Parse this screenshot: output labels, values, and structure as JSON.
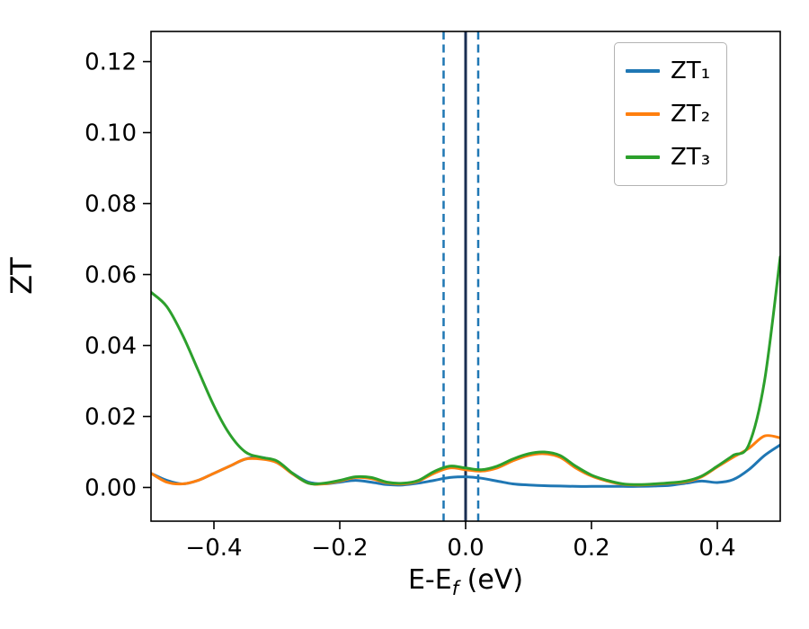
{
  "figure": {
    "background": "#ffffff",
    "ylabel": "ZT",
    "xlabel": {
      "main": "E-E",
      "sub": "f",
      "rest": " (eV)"
    }
  },
  "chart_data": {
    "type": "line",
    "title": "",
    "xlabel": "E-E_f (eV)",
    "ylabel": "ZT",
    "xlim": [
      -0.5,
      0.5
    ],
    "ylim": [
      -0.0095,
      0.1285
    ],
    "grid": false,
    "legend_position": "upper right",
    "x_ticks": {
      "values": [
        -0.4,
        -0.2,
        0.0,
        0.2,
        0.4
      ],
      "labels": [
        "−0.4",
        "−0.2",
        "0.0",
        "0.2",
        "0.4"
      ]
    },
    "y_ticks": {
      "values": [
        0.0,
        0.02,
        0.04,
        0.06,
        0.08,
        0.1,
        0.12
      ],
      "labels": [
        "0.00",
        "0.02",
        "0.04",
        "0.06",
        "0.08",
        "0.10",
        "0.12"
      ]
    },
    "x": [
      -0.5,
      -0.475,
      -0.45,
      -0.425,
      -0.4,
      -0.375,
      -0.35,
      -0.325,
      -0.3,
      -0.275,
      -0.25,
      -0.225,
      -0.2,
      -0.175,
      -0.15,
      -0.125,
      -0.1,
      -0.075,
      -0.05,
      -0.025,
      0,
      0.025,
      0.05,
      0.075,
      0.1,
      0.125,
      0.15,
      0.175,
      0.2,
      0.225,
      0.25,
      0.275,
      0.3,
      0.325,
      0.35,
      0.375,
      0.4,
      0.425,
      0.45,
      0.475,
      0.5
    ],
    "series": [
      {
        "name": "ZT1",
        "label": "ZT₁",
        "color": "#1f77b4",
        "values": [
          0.004,
          0.002,
          0.001,
          0.002,
          0.004,
          0.006,
          0.008,
          0.0085,
          0.007,
          0.004,
          0.0015,
          0.001,
          0.0015,
          0.002,
          0.0015,
          0.0008,
          0.0007,
          0.0012,
          0.002,
          0.0028,
          0.003,
          0.0026,
          0.0018,
          0.001,
          0.0007,
          0.0005,
          0.0004,
          0.0003,
          0.0003,
          0.0003,
          0.0003,
          0.0003,
          0.0004,
          0.0006,
          0.0012,
          0.0018,
          0.0014,
          0.0022,
          0.005,
          0.009,
          0.012
        ]
      },
      {
        "name": "ZT2",
        "label": "ZT₂",
        "color": "#ff7f0e",
        "values": [
          0.004,
          0.0015,
          0.001,
          0.002,
          0.004,
          0.006,
          0.008,
          0.008,
          0.007,
          0.0038,
          0.0012,
          0.001,
          0.0018,
          0.0028,
          0.0025,
          0.0013,
          0.001,
          0.0018,
          0.004,
          0.0055,
          0.005,
          0.0046,
          0.0055,
          0.0075,
          0.009,
          0.0095,
          0.0085,
          0.0055,
          0.0032,
          0.0018,
          0.0009,
          0.0007,
          0.0009,
          0.0012,
          0.0016,
          0.003,
          0.0058,
          0.0085,
          0.011,
          0.0145,
          0.014
        ]
      },
      {
        "name": "ZT3",
        "label": "ZT₃",
        "color": "#2ca02c",
        "values": [
          0.055,
          0.051,
          0.043,
          0.033,
          0.023,
          0.015,
          0.01,
          0.0085,
          0.0075,
          0.004,
          0.0012,
          0.0012,
          0.002,
          0.003,
          0.0028,
          0.0015,
          0.0012,
          0.002,
          0.0045,
          0.006,
          0.0055,
          0.005,
          0.006,
          0.008,
          0.0095,
          0.01,
          0.009,
          0.006,
          0.0035,
          0.002,
          0.001,
          0.0008,
          0.001,
          0.0013,
          0.0018,
          0.0032,
          0.006,
          0.009,
          0.012,
          0.03,
          0.065
        ]
      }
    ],
    "vlines": {
      "solid": {
        "x": 0.0,
        "color": "#1a2e52",
        "width": 3
      },
      "dashed": {
        "xs": [
          -0.035,
          0.02
        ],
        "color": "#1f77b4",
        "width": 2.5
      }
    }
  }
}
